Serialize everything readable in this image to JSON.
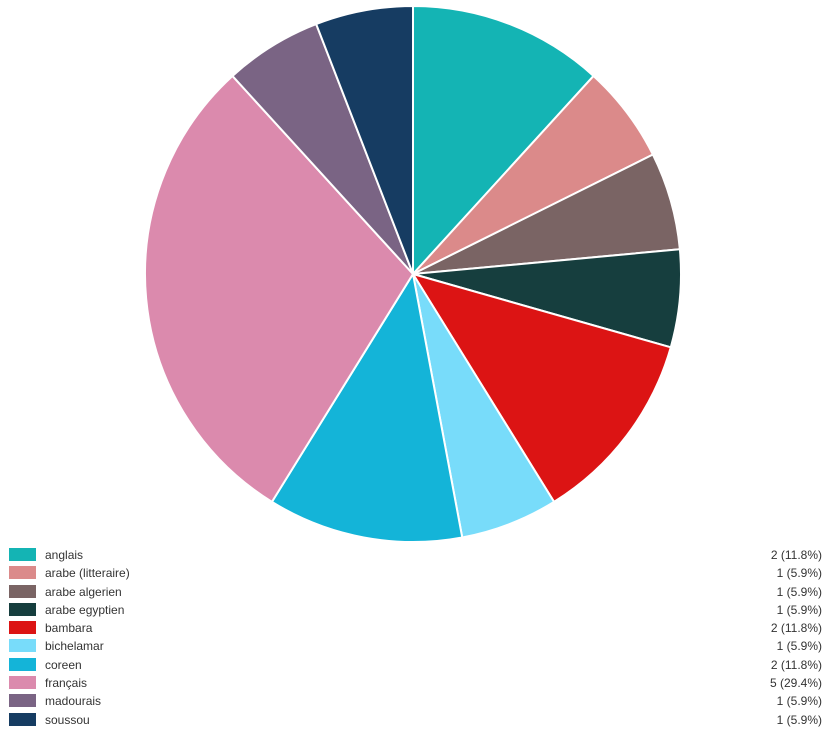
{
  "chart_data": {
    "type": "pie",
    "slices": [
      {
        "label": "anglais",
        "value": 2,
        "display": "2 (11.8%)",
        "color": "#14b4b4"
      },
      {
        "label": "arabe (litteraire)",
        "value": 1,
        "display": "1 (5.9%)",
        "color": "#db8a8a"
      },
      {
        "label": "arabe algerien",
        "value": 1,
        "display": "1 (5.9%)",
        "color": "#7a6464"
      },
      {
        "label": "arabe egyptien",
        "value": 1,
        "display": "1 (5.9%)",
        "color": "#163e3e"
      },
      {
        "label": "bambara",
        "value": 2,
        "display": "2 (11.8%)",
        "color": "#dc1414"
      },
      {
        "label": "bichelamar",
        "value": 1,
        "display": "1 (5.9%)",
        "color": "#78dcfa"
      },
      {
        "label": "coreen",
        "value": 2,
        "display": "2 (11.8%)",
        "color": "#14b4d8"
      },
      {
        "label": "français",
        "value": 5,
        "display": "5 (29.4%)",
        "color": "#db8aad"
      },
      {
        "label": "madourais",
        "value": 1,
        "display": "1 (5.9%)",
        "color": "#7a6484"
      },
      {
        "label": "soussou",
        "value": 1,
        "display": "1 (5.9%)",
        "color": "#163c62"
      }
    ],
    "start_angle": "12 o'clock",
    "direction": "clockwise",
    "legend_position": "bottom"
  }
}
